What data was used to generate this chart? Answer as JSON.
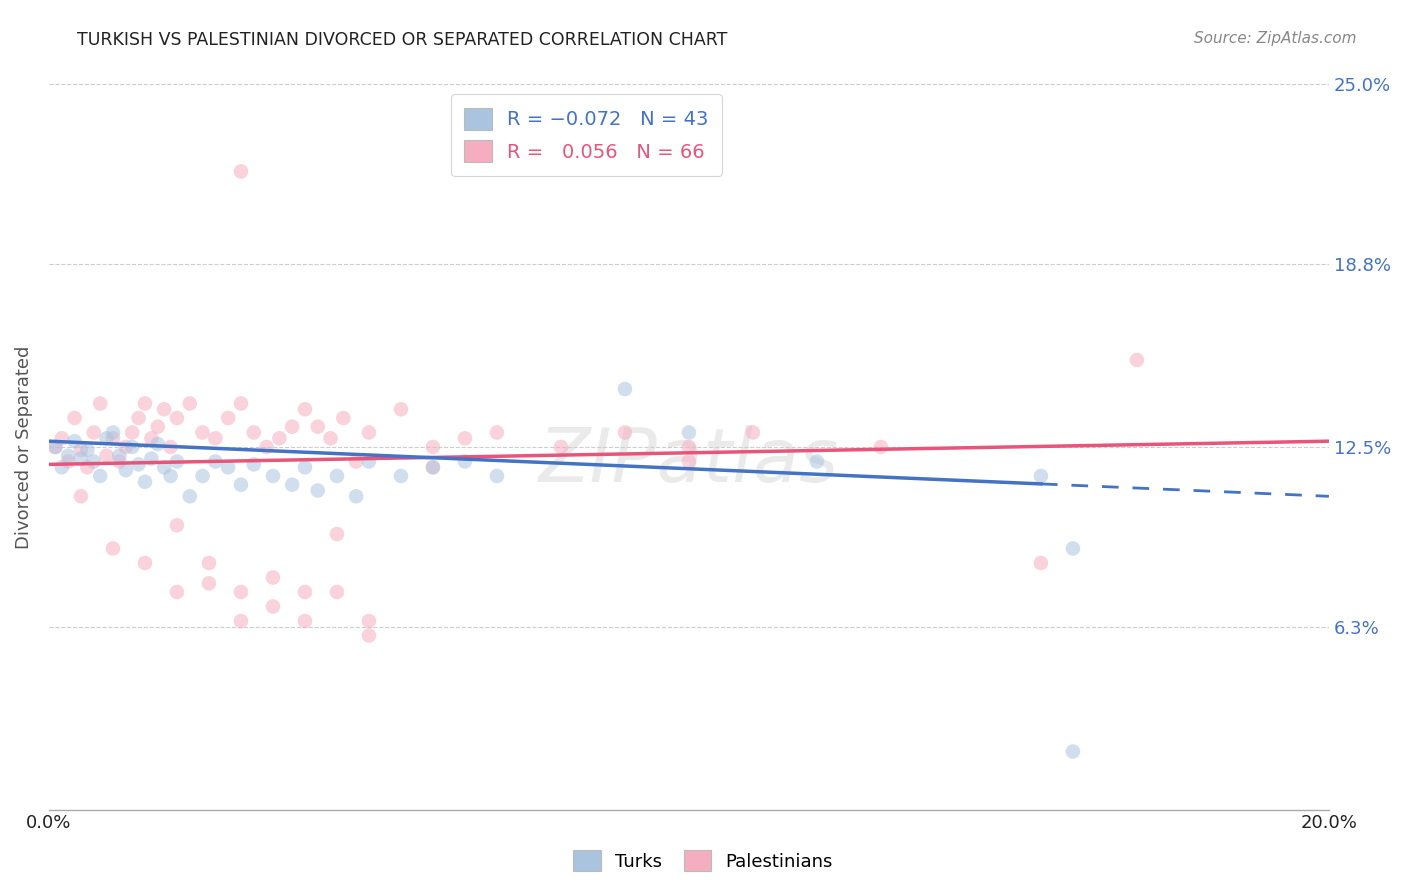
{
  "title": "TURKISH VS PALESTINIAN DIVORCED OR SEPARATED CORRELATION CHART",
  "source": "Source: ZipAtlas.com",
  "ylabel": "Divorced or Separated",
  "xlim": [
    0.0,
    0.2
  ],
  "ylim": [
    0.0,
    0.25
  ],
  "ytick_values": [
    0.063,
    0.125,
    0.188,
    0.25
  ],
  "ytick_labels_right": [
    "6.3%",
    "12.5%",
    "18.8%",
    "25.0%"
  ],
  "xtick_values": [
    0.0,
    0.02,
    0.04,
    0.06,
    0.08,
    0.1,
    0.12,
    0.14,
    0.16,
    0.18,
    0.2
  ],
  "xtick_labels": [
    "0.0%",
    "",
    "",
    "",
    "",
    "",
    "",
    "",
    "",
    "",
    "20.0%"
  ],
  "turks_color": "#aac4e0",
  "palestinians_color": "#f5aec0",
  "turks_line_color": "#4472C4",
  "palestinians_line_color": "#e8547a",
  "turks_line_solid_end": 0.155,
  "turks_line_start_y": 0.127,
  "turks_line_end_y": 0.108,
  "palestinians_line_start_y": 0.119,
  "palestinians_line_end_y": 0.127,
  "turks_x": [
    0.001,
    0.002,
    0.003,
    0.004,
    0.005,
    0.006,
    0.007,
    0.008,
    0.009,
    0.01,
    0.011,
    0.012,
    0.013,
    0.014,
    0.015,
    0.016,
    0.017,
    0.018,
    0.019,
    0.02,
    0.022,
    0.024,
    0.026,
    0.028,
    0.03,
    0.032,
    0.035,
    0.038,
    0.04,
    0.042,
    0.045,
    0.048,
    0.05,
    0.055,
    0.06,
    0.065,
    0.07,
    0.09,
    0.1,
    0.12,
    0.155,
    0.16,
    0.16
  ],
  "turks_y": [
    0.125,
    0.118,
    0.122,
    0.127,
    0.121,
    0.124,
    0.12,
    0.115,
    0.128,
    0.13,
    0.122,
    0.117,
    0.125,
    0.119,
    0.113,
    0.121,
    0.126,
    0.118,
    0.115,
    0.12,
    0.108,
    0.115,
    0.12,
    0.118,
    0.112,
    0.119,
    0.115,
    0.112,
    0.118,
    0.11,
    0.115,
    0.108,
    0.12,
    0.115,
    0.118,
    0.12,
    0.115,
    0.145,
    0.13,
    0.12,
    0.115,
    0.09,
    0.02
  ],
  "palestinians_x": [
    0.001,
    0.002,
    0.003,
    0.004,
    0.005,
    0.006,
    0.007,
    0.008,
    0.009,
    0.01,
    0.011,
    0.012,
    0.013,
    0.014,
    0.015,
    0.016,
    0.017,
    0.018,
    0.019,
    0.02,
    0.022,
    0.024,
    0.026,
    0.028,
    0.03,
    0.032,
    0.034,
    0.036,
    0.038,
    0.04,
    0.042,
    0.044,
    0.046,
    0.048,
    0.05,
    0.055,
    0.06,
    0.065,
    0.07,
    0.08,
    0.09,
    0.1,
    0.11,
    0.13,
    0.155,
    0.17,
    0.03,
    0.045,
    0.06,
    0.1,
    0.005,
    0.01,
    0.015,
    0.02,
    0.025,
    0.03,
    0.035,
    0.04,
    0.045,
    0.05,
    0.02,
    0.025,
    0.03,
    0.035,
    0.04,
    0.05
  ],
  "palestinians_y": [
    0.125,
    0.128,
    0.12,
    0.135,
    0.124,
    0.118,
    0.13,
    0.14,
    0.122,
    0.128,
    0.12,
    0.125,
    0.13,
    0.135,
    0.14,
    0.128,
    0.132,
    0.138,
    0.125,
    0.135,
    0.14,
    0.13,
    0.128,
    0.135,
    0.14,
    0.13,
    0.125,
    0.128,
    0.132,
    0.138,
    0.132,
    0.128,
    0.135,
    0.12,
    0.13,
    0.138,
    0.125,
    0.128,
    0.13,
    0.125,
    0.13,
    0.125,
    0.13,
    0.125,
    0.085,
    0.155,
    0.22,
    0.095,
    0.118,
    0.12,
    0.108,
    0.09,
    0.085,
    0.098,
    0.085,
    0.075,
    0.08,
    0.075,
    0.075,
    0.06,
    0.075,
    0.078,
    0.065,
    0.07,
    0.065,
    0.065
  ],
  "background_color": "#ffffff",
  "grid_color": "#cccccc",
  "marker_size": 110,
  "marker_alpha": 0.55,
  "title_color": "#222222",
  "source_color": "#888888",
  "axis_label_color": "#555555",
  "tick_color_right": "#4472C4",
  "tick_color_bottom": "#222222",
  "legend_labels": [
    "Turks",
    "Palestinians"
  ]
}
